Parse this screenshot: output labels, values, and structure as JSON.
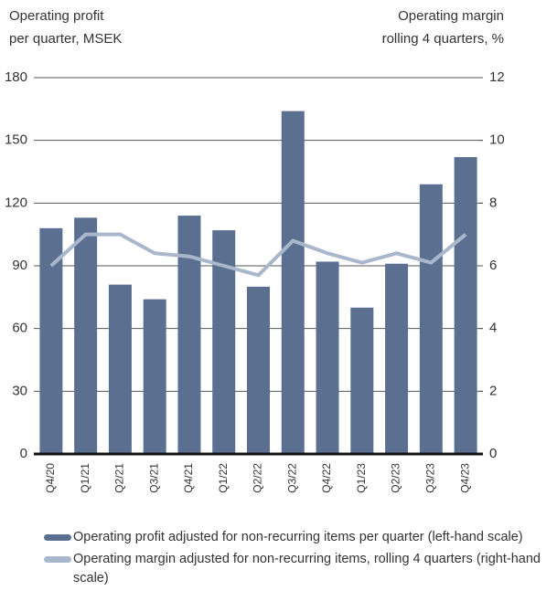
{
  "chart_data": {
    "type": "bar",
    "y_title": [
      "Operating profit",
      "per quarter, MSEK"
    ],
    "y2_title": [
      "Operating margin",
      "rolling 4 quarters, %"
    ],
    "categories": [
      "Q4/20",
      "Q1/21",
      "Q2/21",
      "Q3/21",
      "Q4/21",
      "Q1/22",
      "Q2/22",
      "Q3/22",
      "Q4/22",
      "Q1/23",
      "Q2/23",
      "Q3/23",
      "Q4/23"
    ],
    "series": [
      {
        "name": "Operating profit adjusted for non-recurring items per quarter (left-hand scale)",
        "type": "bar",
        "color": "#5b7091",
        "values": [
          108,
          113,
          81,
          74,
          114,
          107,
          80,
          164,
          92,
          70,
          91,
          129,
          142
        ]
      },
      {
        "name": "Operating margin adjusted for non-recurring items, rolling 4 quarters (right-hand scale)",
        "type": "line",
        "axis": "y2",
        "color": "#a9b7cc",
        "values": [
          6.0,
          7.0,
          7.0,
          6.4,
          6.3,
          6.0,
          5.7,
          6.8,
          6.4,
          6.1,
          6.4,
          6.1,
          7.0
        ]
      }
    ],
    "ylim": [
      0,
      180
    ],
    "yticks": [
      0,
      30,
      60,
      90,
      120,
      150,
      180
    ],
    "y2lim": [
      0,
      12
    ],
    "y2ticks": [
      0,
      2,
      4,
      6,
      8,
      10,
      12
    ],
    "grid": true
  }
}
